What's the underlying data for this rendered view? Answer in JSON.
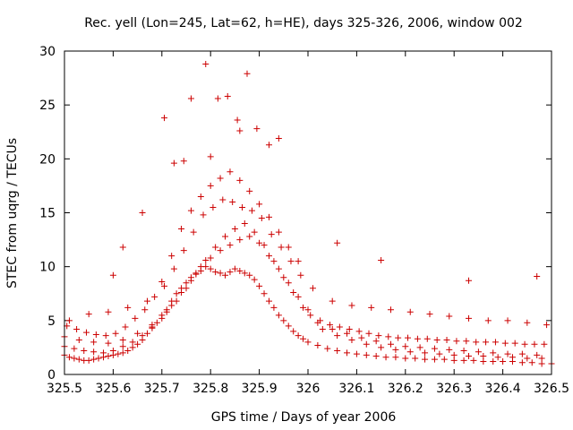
{
  "chart_data": {
    "type": "scatter",
    "title": "Rec. yell (Lon=245, Lat=62, h=HE), days 325-326, 2006, window 002",
    "xlabel": "GPS time / Days of year 2006",
    "ylabel": "STEC from uqrg / TECUs",
    "xlim": [
      325.5,
      326.5
    ],
    "ylim": [
      0,
      30
    ],
    "xticks": [
      "325.5",
      "325.6",
      "325.7",
      "325.8",
      "325.9",
      "326",
      "326.1",
      "326.2",
      "326.3",
      "326.4",
      "326.5"
    ],
    "yticks": [
      "0",
      "5",
      "10",
      "15",
      "20",
      "25",
      "30"
    ],
    "grid": false,
    "marker": "plus",
    "color": "#cc0000",
    "series": [
      {
        "x": [
          325.5,
          325.51,
          325.52,
          325.53,
          325.54,
          325.55,
          325.56,
          325.57,
          325.58,
          325.59,
          325.6,
          325.61,
          325.62,
          325.63,
          325.64,
          325.65,
          325.66,
          325.67,
          325.68,
          325.69,
          325.7,
          325.71,
          325.72,
          325.73,
          325.74,
          325.75,
          325.76,
          325.77,
          325.78,
          325.79,
          325.8,
          325.81,
          325.82,
          325.83,
          325.84,
          325.85,
          325.86,
          325.87,
          325.88,
          325.89,
          325.9,
          325.91,
          325.92,
          325.93,
          325.94,
          325.95,
          325.96,
          325.97,
          325.98,
          325.99,
          326.0,
          326.02,
          326.04,
          326.06,
          326.08,
          326.1,
          326.12,
          326.14,
          326.16,
          326.18,
          326.2,
          326.22,
          326.24,
          326.26,
          326.28,
          326.3,
          326.32,
          326.34,
          326.36,
          326.38,
          326.4,
          326.42,
          326.44,
          326.46,
          326.48,
          326.5,
          325.5,
          325.52,
          325.54,
          325.56,
          325.58,
          325.6,
          325.62,
          325.64,
          325.66,
          325.68,
          325.7,
          325.72,
          325.74,
          325.76,
          325.78,
          325.8,
          325.82,
          325.84,
          325.86,
          325.88,
          325.9,
          325.92,
          325.94,
          325.96,
          325.98,
          326.0,
          326.03,
          326.06,
          326.09,
          326.12,
          326.15,
          326.18,
          326.21,
          326.24,
          326.27,
          326.3,
          326.33,
          326.36,
          326.39,
          326.42,
          326.45,
          326.48,
          325.5,
          325.53,
          325.56,
          325.59,
          325.62,
          325.65,
          325.68,
          325.71,
          325.73,
          325.75,
          325.77,
          325.79,
          325.81,
          325.83,
          325.85,
          325.87,
          325.89,
          325.91,
          325.93,
          325.95,
          325.97,
          325.99,
          326.02,
          326.05,
          326.08,
          326.11,
          326.14,
          326.17,
          326.2,
          326.23,
          326.26,
          326.29,
          326.32,
          326.35,
          326.38,
          326.41,
          326.44,
          326.47,
          325.505,
          325.525,
          325.545,
          325.565,
          325.585,
          325.605,
          325.625,
          325.645,
          325.665,
          325.685,
          325.705,
          325.725,
          325.745,
          325.765,
          325.785,
          325.805,
          325.825,
          325.845,
          325.865,
          325.885,
          325.905,
          325.925,
          325.945,
          325.965,
          325.985,
          326.005,
          326.025,
          326.045,
          326.065,
          326.085,
          326.105,
          326.125,
          326.145,
          326.165,
          326.185,
          326.205,
          326.225,
          326.245,
          326.265,
          326.285,
          326.305,
          326.325,
          326.345,
          326.365,
          326.385,
          326.405,
          326.425,
          326.445,
          326.465,
          326.485,
          325.51,
          325.55,
          325.59,
          325.63,
          325.67,
          325.7,
          325.72,
          325.74,
          325.76,
          325.78,
          325.8,
          325.82,
          325.84,
          325.86,
          325.88,
          325.9,
          325.92,
          325.94,
          325.96,
          325.98,
          326.01,
          326.05,
          326.09,
          326.13,
          326.17,
          326.21,
          326.25,
          326.29,
          326.33,
          326.37,
          326.41,
          326.45,
          326.49,
          325.6,
          325.62,
          325.66,
          325.705,
          325.725,
          325.745,
          325.76,
          325.79,
          325.8,
          325.815,
          325.835,
          325.855,
          325.86,
          325.875,
          325.895,
          325.92,
          325.94,
          326.06,
          326.15,
          326.33,
          326.47
        ],
        "y": [
          1.8,
          1.6,
          1.5,
          1.4,
          1.3,
          1.3,
          1.4,
          1.5,
          1.6,
          1.7,
          1.8,
          1.9,
          2.0,
          2.2,
          2.5,
          2.8,
          3.2,
          3.8,
          4.3,
          4.8,
          5.5,
          6.0,
          6.8,
          7.5,
          8.0,
          8.5,
          9.0,
          9.3,
          9.6,
          10.0,
          9.8,
          9.5,
          9.4,
          9.2,
          9.5,
          9.8,
          9.6,
          9.4,
          9.2,
          8.8,
          8.2,
          7.5,
          6.8,
          6.2,
          5.5,
          5.0,
          4.5,
          4.0,
          3.6,
          3.3,
          3.0,
          2.7,
          2.4,
          2.2,
          2.0,
          1.9,
          1.8,
          1.7,
          1.6,
          1.6,
          1.5,
          1.5,
          1.4,
          1.4,
          1.4,
          1.3,
          1.3,
          1.3,
          1.2,
          1.2,
          1.2,
          1.2,
          1.1,
          1.1,
          1.0,
          1.0,
          2.6,
          2.4,
          2.2,
          2.1,
          2.0,
          2.2,
          2.6,
          3.0,
          3.6,
          4.4,
          5.2,
          6.4,
          7.6,
          8.7,
          10.0,
          10.8,
          11.5,
          12.0,
          12.5,
          12.8,
          12.2,
          11.0,
          9.8,
          8.5,
          7.2,
          6.0,
          4.2,
          3.6,
          3.2,
          2.8,
          2.5,
          2.3,
          2.1,
          2.0,
          1.9,
          1.8,
          1.7,
          1.7,
          1.6,
          1.6,
          1.5,
          1.5,
          3.5,
          3.2,
          3.0,
          2.9,
          3.2,
          3.8,
          4.6,
          5.8,
          6.8,
          8.0,
          9.4,
          10.6,
          11.8,
          12.8,
          13.5,
          14.0,
          13.2,
          12.0,
          10.5,
          9.0,
          7.6,
          6.2,
          4.8,
          4.2,
          3.8,
          3.4,
          3.1,
          2.8,
          2.6,
          2.5,
          2.4,
          2.3,
          2.2,
          2.1,
          2.0,
          1.9,
          1.9,
          1.8,
          4.5,
          4.2,
          3.9,
          3.7,
          3.6,
          3.8,
          4.4,
          5.2,
          6.0,
          7.2,
          8.2,
          9.8,
          11.5,
          13.2,
          14.8,
          15.5,
          16.2,
          16.0,
          15.5,
          15.2,
          14.5,
          13.0,
          11.8,
          10.5,
          9.2,
          5.5,
          5.0,
          4.6,
          4.4,
          4.2,
          4.0,
          3.8,
          3.6,
          3.5,
          3.4,
          3.4,
          3.3,
          3.3,
          3.2,
          3.2,
          3.1,
          3.1,
          3.0,
          3.0,
          3.0,
          2.9,
          2.9,
          2.8,
          2.8,
          2.8,
          5.0,
          5.6,
          5.8,
          6.2,
          6.8,
          8.6,
          11.0,
          13.5,
          15.2,
          16.5,
          17.5,
          18.2,
          18.8,
          18.0,
          17.0,
          15.8,
          14.6,
          13.2,
          11.8,
          10.5,
          8.0,
          6.8,
          6.4,
          6.2,
          6.0,
          5.8,
          5.6,
          5.4,
          5.2,
          5.0,
          5.0,
          4.8,
          4.6,
          9.2,
          11.8,
          15.0,
          23.8,
          19.6,
          19.8,
          25.6,
          28.8,
          20.2,
          25.6,
          25.8,
          23.6,
          22.6,
          27.9,
          22.8,
          21.3,
          21.9,
          12.2,
          10.6,
          8.7,
          9.1
        ]
      }
    ]
  }
}
